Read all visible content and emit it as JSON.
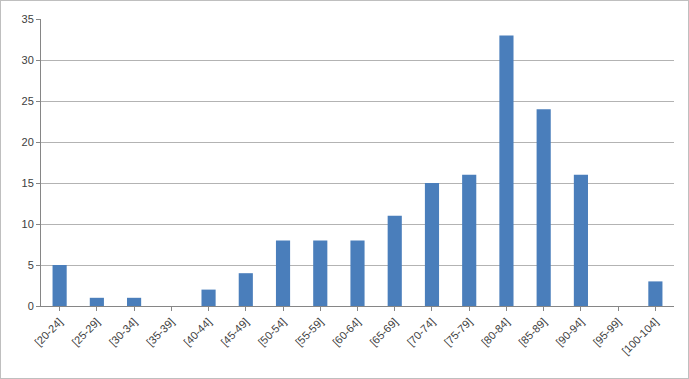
{
  "chart_data": {
    "type": "bar",
    "categories": [
      "[20-24]",
      "[25-29]",
      "[30-34]",
      "[35-39]",
      "[40-44]",
      "[45-49]",
      "[50-54]",
      "[55-59]",
      "[60-64]",
      "[65-69]",
      "[70-74]",
      "[75-79]",
      "[80-84]",
      "[85-89]",
      "[90-94]",
      "[95-99]",
      "[100-104]"
    ],
    "values": [
      5,
      1,
      1,
      0,
      2,
      4,
      8,
      8,
      8,
      11,
      15,
      16,
      33,
      24,
      16,
      0,
      3
    ],
    "color": "#4a7ebb",
    "ylim": [
      0,
      35
    ],
    "yticks": [
      0,
      5,
      10,
      15,
      20,
      25,
      30,
      35
    ],
    "grid": true
  }
}
